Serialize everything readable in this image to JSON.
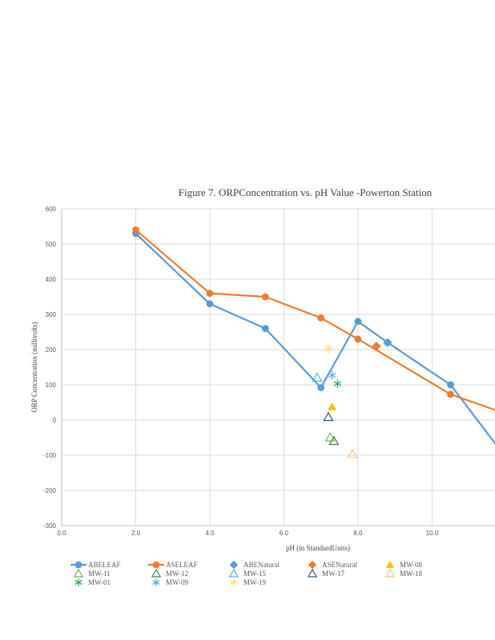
{
  "chart_data": {
    "type": "scatter",
    "title": "Figure 7. ORPConcentration  vs. pH Value  -Powerton  Station",
    "xlabel": "pH (in StandardUnits)",
    "ylabel": "ORP Concentration (millivolts)",
    "xlim": [
      0,
      11.7
    ],
    "ylim": [
      -300,
      600
    ],
    "xticks": [
      "0.0",
      "2.0",
      "4.0",
      "6.0",
      "8.0",
      "10.0"
    ],
    "yticks": [
      "-300",
      "-200",
      "-100",
      "0",
      "100",
      "200",
      "300",
      "400",
      "500",
      "600"
    ],
    "grid": true,
    "legend_position": "bottom",
    "series": [
      {
        "name": "ABELEAF",
        "kind": "line",
        "marker": "circle",
        "color": "#5b9bd5",
        "points": [
          [
            2.0,
            530
          ],
          [
            4.0,
            330
          ],
          [
            5.5,
            260
          ],
          [
            7.0,
            92
          ],
          [
            8.0,
            280
          ],
          [
            8.8,
            220
          ],
          [
            10.5,
            100
          ],
          [
            11.8,
            -80
          ]
        ]
      },
      {
        "name": "ASELEAF",
        "kind": "line",
        "marker": "circle",
        "color": "#ed7d31",
        "points": [
          [
            2.0,
            540
          ],
          [
            4.0,
            360
          ],
          [
            5.5,
            350
          ],
          [
            7.0,
            290
          ],
          [
            8.0,
            230
          ],
          [
            10.5,
            73
          ],
          [
            11.8,
            25
          ]
        ]
      },
      {
        "name": "ABENatural",
        "kind": "point",
        "marker": "diamond",
        "color": "#5b9bd5",
        "points": [
          [
            8.8,
            220
          ]
        ]
      },
      {
        "name": "ASENatural",
        "kind": "point",
        "marker": "diamond",
        "color": "#ed7d31",
        "points": [
          [
            8.5,
            210
          ]
        ]
      },
      {
        "name": "MW-08",
        "kind": "point",
        "marker": "triangle-filled",
        "color": "#ffc000",
        "points": [
          [
            7.3,
            37
          ]
        ]
      },
      {
        "name": "MW-11",
        "kind": "point",
        "marker": "triangle-open",
        "color": "#70ad47",
        "points": [
          [
            7.25,
            -50
          ]
        ]
      },
      {
        "name": "MW-12",
        "kind": "point",
        "marker": "triangle-open",
        "color": "#2e7d32",
        "points": [
          [
            7.35,
            -60
          ]
        ]
      },
      {
        "name": "MW-15",
        "kind": "point",
        "marker": "triangle-open",
        "color": "#4baadf",
        "points": [
          [
            6.9,
            120
          ]
        ]
      },
      {
        "name": "MW-17",
        "kind": "point",
        "marker": "triangle-open",
        "color": "#1f4e79",
        "points": [
          [
            7.2,
            8
          ]
        ]
      },
      {
        "name": "MW-18",
        "kind": "point",
        "marker": "triangle-open",
        "color": "#f5c16c",
        "points": [
          [
            7.85,
            -97
          ]
        ]
      },
      {
        "name": "MW-01",
        "kind": "point",
        "marker": "asterisk",
        "color": "#2e9d4e",
        "points": [
          [
            7.45,
            103
          ]
        ]
      },
      {
        "name": "MW-09",
        "kind": "point",
        "marker": "asterisk",
        "color": "#4baadf",
        "points": [
          [
            7.3,
            127
          ]
        ]
      },
      {
        "name": "MW-19",
        "kind": "point",
        "marker": "asterisk",
        "color": "#ffd966",
        "points": [
          [
            7.2,
            203
          ]
        ]
      }
    ]
  }
}
